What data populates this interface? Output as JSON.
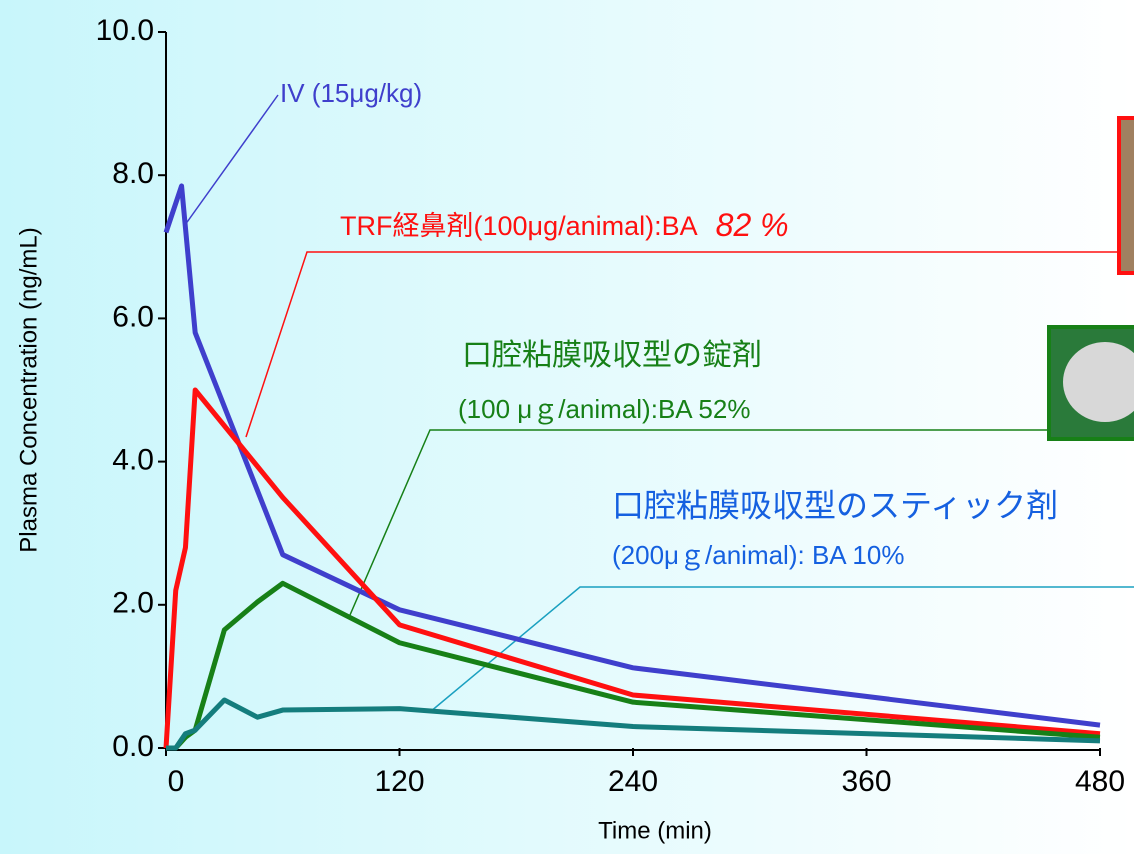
{
  "chart_data": {
    "type": "line",
    "x_label": "Time (min)",
    "y_label": "Plasma Concentration (ng/mL)",
    "xlim": [
      0,
      480
    ],
    "xticks": [
      0,
      120,
      240,
      360,
      480
    ],
    "ylim": [
      0,
      10
    ],
    "yticks": [
      {
        "value": 0,
        "label": "0.0"
      },
      {
        "value": 2,
        "label": "2.0"
      },
      {
        "value": 4,
        "label": "4.0"
      },
      {
        "value": 6,
        "label": "6.0"
      },
      {
        "value": 8,
        "label": "8.0"
      },
      {
        "value": 10,
        "label": "10.0"
      }
    ],
    "series": [
      {
        "name": "IV (15μg/kg)",
        "color": "#3f3fcc",
        "x": [
          0,
          8,
          15,
          60,
          120,
          240,
          480
        ],
        "values": [
          7.2,
          7.85,
          5.8,
          2.7,
          1.93,
          1.12,
          0.32
        ]
      },
      {
        "name": "TRF経鼻剤(100μg/animal):BA ",
        "color": "#ff1010",
        "x": [
          0,
          5,
          10,
          15,
          60,
          120,
          240,
          480
        ],
        "values": [
          0,
          2.2,
          2.8,
          5.0,
          3.5,
          1.72,
          0.74,
          0.2
        ]
      },
      {
        "name": "口腔粘膜吸収型の錠剤",
        "color": "#178017",
        "x": [
          0,
          5,
          10,
          15,
          30,
          47,
          60,
          120,
          240,
          480
        ],
        "values": [
          0,
          0,
          0.15,
          0.25,
          1.65,
          2.04,
          2.3,
          1.47,
          0.64,
          0.15
        ]
      },
      {
        "name": "口腔粘膜吸収型のスティック剤",
        "color": "#147d7d",
        "x": [
          0,
          5,
          10,
          15,
          30,
          47,
          60,
          120,
          240,
          480
        ],
        "values": [
          0,
          0,
          0.2,
          0.25,
          0.67,
          0.43,
          0.53,
          0.55,
          0.3,
          0.1
        ]
      }
    ],
    "annotations": [
      "82 %",
      "(100  μｇ/animal):BA 52%",
      "(200μｇ/animal): BA 10%"
    ]
  }
}
